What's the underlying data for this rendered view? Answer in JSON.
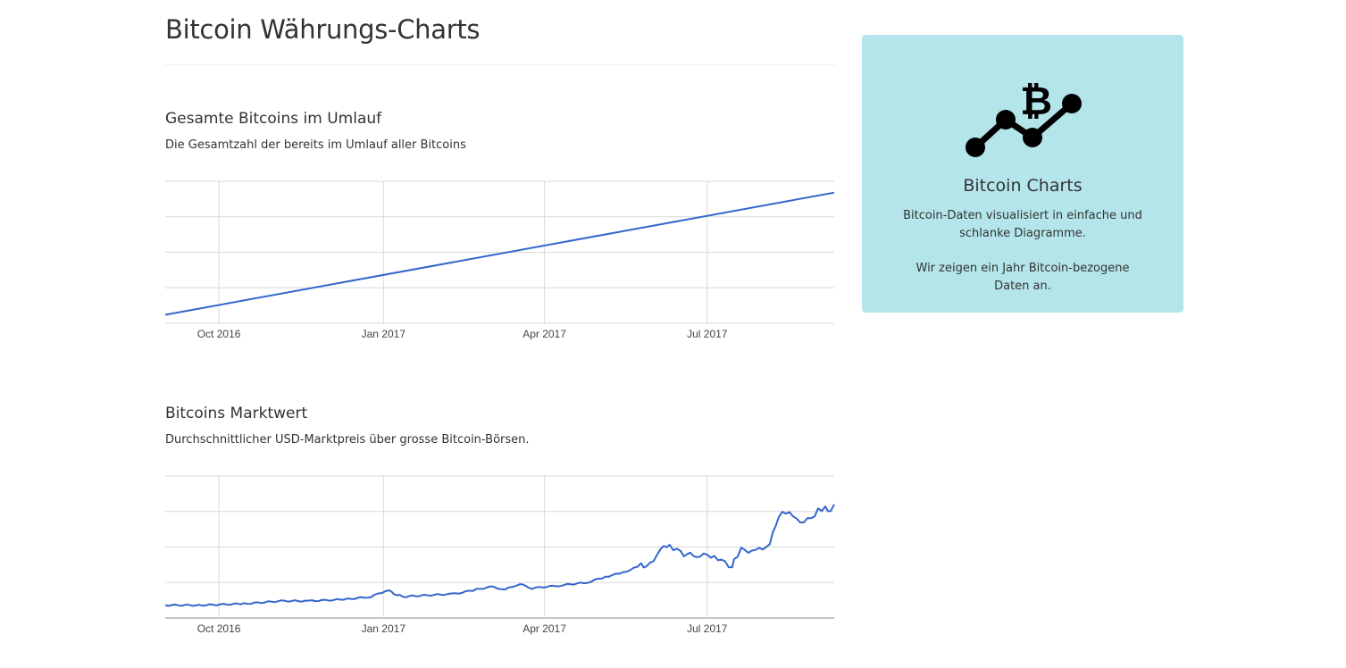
{
  "page": {
    "title": "Bitcoin Währungs-Charts"
  },
  "sections": [
    {
      "title": "Gesamte Bitcoins im Umlauf",
      "description": "Die Gesamtzahl der bereits im Umlauf aller Bitcoins"
    },
    {
      "title": "Bitcoins Marktwert",
      "description": "Durchschnittlicher USD-Marktpreis über grosse Bitcoin-Börsen."
    }
  ],
  "panel": {
    "icon": "bitcoin-chart-icon",
    "title": "Bitcoin Charts",
    "text1": "Bitcoin-Daten visualisiert in einfache und schlanke Diagramme.",
    "text2": "Wir zeigen ein Jahr Bitcoin-bezogene Daten an.",
    "background": "#b4e5ea"
  },
  "colors": {
    "line": "#3366cc",
    "grid": "#d9d9d9"
  },
  "chart_data": [
    {
      "type": "line",
      "title": "Gesamte Bitcoins im Umlauf",
      "x_ticks": [
        "Oct 2016",
        "Jan 2017",
        "Apr 2017",
        "Jul 2017"
      ],
      "xlim": [
        "2016-09-01",
        "2017-09-10"
      ],
      "gridlines": 5,
      "y_axis_labels_shown": false,
      "x": [
        "2016-09-01",
        "2017-09-10"
      ],
      "y_relative": [
        0.06,
        0.92
      ]
    },
    {
      "type": "line",
      "title": "Bitcoins Marktwert",
      "x_ticks": [
        "Oct 2016",
        "Jan 2017",
        "Apr 2017",
        "Jul 2017"
      ],
      "xlim": [
        "2016-09-01",
        "2017-09-10"
      ],
      "gridlines": 5,
      "y_axis_labels_shown": false,
      "x": [
        "2016-09-01",
        "2016-09-20",
        "2016-10-15",
        "2016-11-05",
        "2016-11-20",
        "2016-12-10",
        "2016-12-25",
        "2017-01-04",
        "2017-01-07",
        "2017-01-12",
        "2017-01-25",
        "2017-02-10",
        "2017-02-22",
        "2017-03-02",
        "2017-03-10",
        "2017-03-18",
        "2017-03-25",
        "2017-04-10",
        "2017-04-25",
        "2017-05-05",
        "2017-05-15",
        "2017-05-25",
        "2017-05-28",
        "2017-06-05",
        "2017-06-10",
        "2017-06-12",
        "2017-06-18",
        "2017-06-25",
        "2017-07-05",
        "2017-07-15",
        "2017-07-16",
        "2017-07-20",
        "2017-07-28",
        "2017-08-05",
        "2017-08-10",
        "2017-08-14",
        "2017-08-18",
        "2017-08-22",
        "2017-08-28",
        "2017-09-01",
        "2017-09-05",
        "2017-09-08",
        "2017-09-10"
      ],
      "y_relative": [
        0.09,
        0.09,
        0.1,
        0.12,
        0.12,
        0.13,
        0.15,
        0.2,
        0.17,
        0.15,
        0.16,
        0.17,
        0.2,
        0.22,
        0.2,
        0.24,
        0.21,
        0.23,
        0.25,
        0.29,
        0.32,
        0.37,
        0.35,
        0.48,
        0.52,
        0.49,
        0.45,
        0.44,
        0.44,
        0.35,
        0.4,
        0.48,
        0.47,
        0.52,
        0.72,
        0.75,
        0.73,
        0.68,
        0.7,
        0.76,
        0.77,
        0.74,
        0.8
      ]
    }
  ]
}
